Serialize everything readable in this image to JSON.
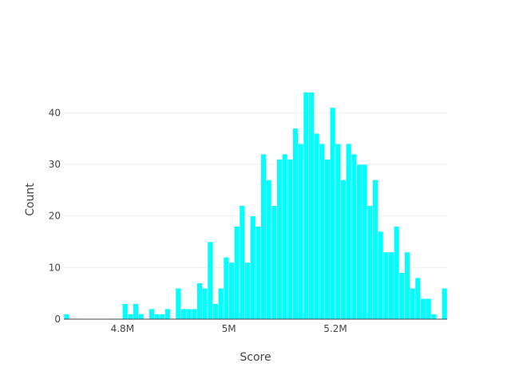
{
  "chart_data": {
    "type": "bar",
    "xlabel": "Score",
    "ylabel": "Count",
    "x_tick_labels": [
      "4.8M",
      "5M",
      "5.2M"
    ],
    "x_tick_values": [
      4800000,
      5000000,
      5200000
    ],
    "y_tick_labels": [
      "0",
      "10",
      "20",
      "30",
      "40"
    ],
    "y_tick_values": [
      0,
      10,
      20,
      30,
      40
    ],
    "xlim": [
      4690000,
      5410000
    ],
    "ylim": [
      0,
      46.4
    ],
    "bin_start": 4690000,
    "bin_width": 10000,
    "values": [
      1,
      0,
      0,
      0,
      0,
      0,
      0,
      0,
      0,
      0,
      0,
      3,
      1,
      3,
      1,
      0,
      2,
      1,
      1,
      2,
      0,
      6,
      2,
      2,
      2,
      7,
      6,
      15,
      3,
      6,
      12,
      11,
      18,
      22,
      11,
      20,
      18,
      32,
      27,
      22,
      31,
      32,
      31,
      37,
      34,
      44,
      44,
      36,
      34,
      31,
      41,
      34,
      27,
      34,
      32,
      30,
      30,
      22,
      27,
      17,
      13,
      13,
      18,
      9,
      13,
      6,
      8,
      4,
      4,
      1,
      0,
      6
    ],
    "grid": "horizontal",
    "colors": {
      "bar_fill": "#00ffff",
      "bar_stroke": "#ffffff",
      "grid": "#eeeeee",
      "zero_line": "#444444",
      "text": "#444444"
    }
  }
}
